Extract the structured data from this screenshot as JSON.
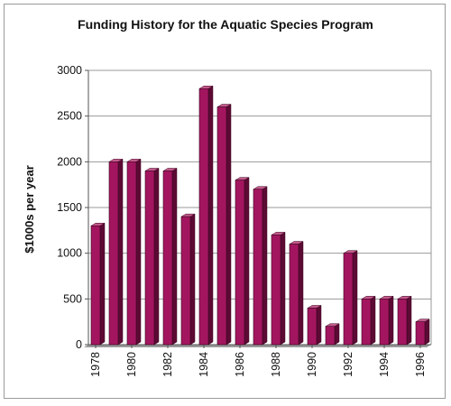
{
  "chart_data": {
    "type": "bar",
    "title": "Funding History for the Aquatic Species Program",
    "xlabel": "",
    "ylabel": "$1000s per year",
    "categories": [
      "1978",
      "1979",
      "1980",
      "1981",
      "1982",
      "1983",
      "1984",
      "1985",
      "1986",
      "1987",
      "1988",
      "1989",
      "1990",
      "1991",
      "1992",
      "1993",
      "1994",
      "1995",
      "1996"
    ],
    "x_tick_labels": [
      "1978",
      "1980",
      "1982",
      "1984",
      "1986",
      "1988",
      "1990",
      "1992",
      "1994",
      "1996"
    ],
    "values": [
      1300,
      2000,
      2000,
      1900,
      1900,
      1400,
      2800,
      2600,
      1800,
      1700,
      1200,
      1100,
      400,
      200,
      1000,
      500,
      500,
      500,
      250
    ],
    "ylim": [
      0,
      3000
    ],
    "y_ticks": [
      0,
      500,
      1000,
      1500,
      2000,
      2500,
      3000
    ],
    "grid": true,
    "legend": "none",
    "colors": {
      "bar_front": "#a3165f",
      "bar_side": "#5c0a34",
      "bar_top": "#c45a8c",
      "floor": "#9a9a9a",
      "grid": "#9a9a9a"
    }
  }
}
